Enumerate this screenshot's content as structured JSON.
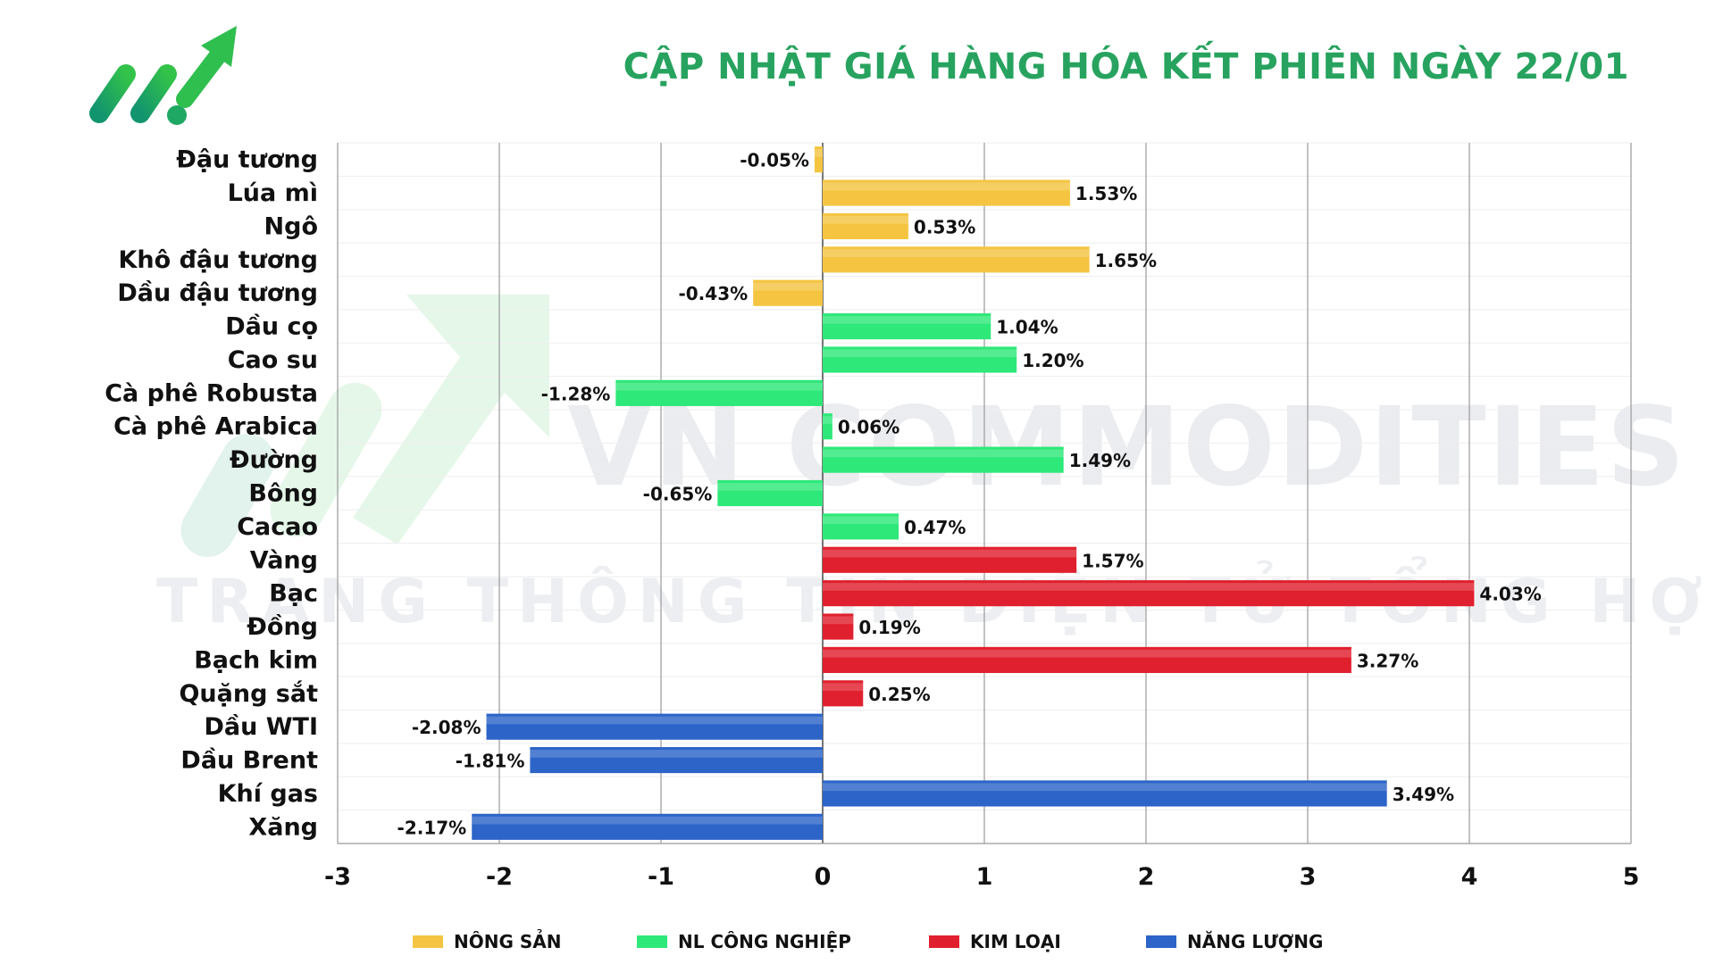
{
  "title": "CẬP NHẬT GIÁ HÀNG HÓA KẾT PHIÊN NGÀY 22/01",
  "watermark": {
    "main": "VN COMMODITIES",
    "sub": "TRANG THÔNG TIN ĐIỆN TỬ TỔNG HỢP"
  },
  "logo": {
    "name": "rising-arrow-logo",
    "colors": [
      "#1a9e6e",
      "#2fbf4f"
    ]
  },
  "chart_data": {
    "type": "bar",
    "orientation": "horizontal",
    "title": "CẬP NHẬT GIÁ HÀNG HÓA KẾT PHIÊN NGÀY 22/01",
    "xlabel": "",
    "ylabel": "",
    "xlim": [
      -3,
      5
    ],
    "xticks": [
      "-3",
      "-2",
      "-1",
      "0",
      "1",
      "2",
      "3",
      "4",
      "5"
    ],
    "grid": "vertical",
    "legend_position": "bottom",
    "categories": [
      "Đậu tương",
      "Lúa mì",
      "Ngô",
      "Khô đậu tương",
      "Dầu đậu tương",
      "Dầu cọ",
      "Cao su",
      "Cà phê Robusta",
      "Cà phê Arabica",
      "Đường",
      "Bông",
      "Cacao",
      "Vàng",
      "Bạc",
      "Đồng",
      "Bạch kim",
      "Quặng sắt",
      "Dầu WTI",
      "Dầu Brent",
      "Khí gas",
      "Xăng"
    ],
    "values": [
      -0.05,
      1.53,
      0.53,
      1.65,
      -0.43,
      1.04,
      1.2,
      -1.28,
      0.06,
      1.49,
      -0.65,
      0.47,
      1.57,
      4.03,
      0.19,
      3.27,
      0.25,
      -2.08,
      -1.81,
      3.49,
      -2.17
    ],
    "value_labels": [
      "-0.05%",
      "1.53%",
      "0.53%",
      "1.65%",
      "-0.43%",
      "1.04%",
      "1.20%",
      "-1.28%",
      "0.06%",
      "1.49%",
      "-0.65%",
      "0.47%",
      "1.57%",
      "4.03%",
      "0.19%",
      "3.27%",
      "0.25%",
      "-2.08%",
      "-1.81%",
      "3.49%",
      "-2.17%"
    ],
    "groups": [
      0,
      0,
      0,
      0,
      0,
      1,
      1,
      1,
      1,
      1,
      1,
      1,
      2,
      2,
      2,
      2,
      2,
      3,
      3,
      3,
      3
    ],
    "series": [
      {
        "name": "NÔNG SẢN",
        "color": "#f5c542"
      },
      {
        "name": "NL CÔNG NGHIỆP",
        "color": "#2ee879"
      },
      {
        "name": "KIM LOẠI",
        "color": "#e0202e"
      },
      {
        "name": "NĂNG LƯỢNG",
        "color": "#2c64c8"
      }
    ]
  }
}
